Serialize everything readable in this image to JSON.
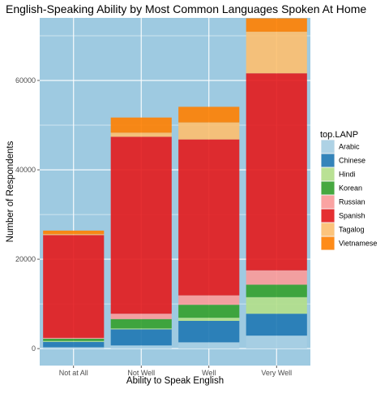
{
  "chart_data": {
    "type": "bar",
    "stacked": true,
    "title": "English-Speaking Ability by Most Common Languages Spoken At Home",
    "xlabel": "Ability to Speak English",
    "ylabel": "Number of Respondents",
    "categories": [
      "Not at All",
      "Not Well",
      "Well",
      "Very Well"
    ],
    "ylim": [
      -3800,
      74000
    ],
    "yticks": [
      0,
      20000,
      40000,
      60000
    ],
    "ytick_labels": [
      "0",
      "20000",
      "40000",
      "60000"
    ],
    "grid": true,
    "panel_background": "#9ecae1",
    "legend": {
      "title": "top.LANP",
      "placement": "right",
      "entries": [
        "Arabic",
        "Chinese",
        "Hindi",
        "Korean",
        "Russian",
        "Spanish",
        "Tagalog",
        "Vietnamese"
      ]
    },
    "series": [
      {
        "name": "Arabic",
        "color": "#a6cee3",
        "values": [
          300,
          700,
          1400,
          2900
        ]
      },
      {
        "name": "Chinese",
        "color": "#1f78b4",
        "values": [
          1200,
          3600,
          4800,
          4900
        ]
      },
      {
        "name": "Hindi",
        "color": "#b2df8a",
        "values": [
          200,
          200,
          700,
          3700
        ]
      },
      {
        "name": "Korean",
        "color": "#33a02c",
        "values": [
          500,
          2100,
          2900,
          2800
        ]
      },
      {
        "name": "Russian",
        "color": "#fb9a99",
        "values": [
          200,
          1200,
          2100,
          3200
        ]
      },
      {
        "name": "Spanish",
        "color": "#e31a1c",
        "values": [
          23000,
          39600,
          34900,
          44100
        ]
      },
      {
        "name": "Tagalog",
        "color": "#fdbf6f",
        "values": [
          200,
          900,
          3800,
          9300
        ]
      },
      {
        "name": "Vietnamese",
        "color": "#ff7f00",
        "values": [
          800,
          3400,
          3500,
          3000
        ]
      }
    ]
  }
}
